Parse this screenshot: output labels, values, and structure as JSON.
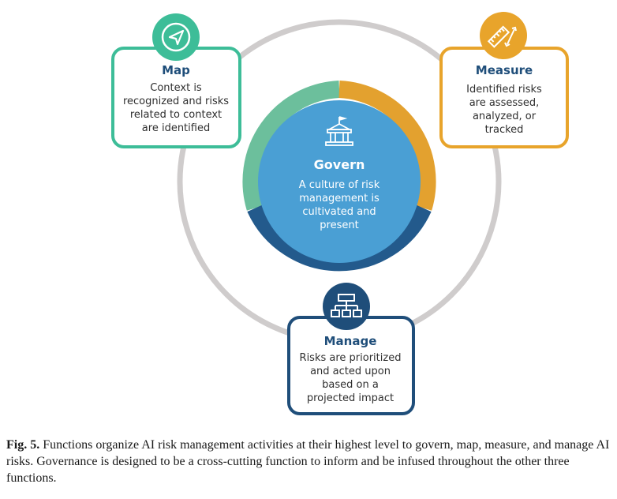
{
  "center": {
    "title": "Govern",
    "lines": [
      "A culture of risk",
      "management is",
      "cultivated and",
      "present"
    ],
    "icon": "building-icon",
    "color": "#4a9fd4"
  },
  "map": {
    "title": "Map",
    "lines": [
      "Context is",
      "recognized and risks",
      "related to context",
      "are identified"
    ],
    "icon": "compass-icon",
    "color": "#3dbd98"
  },
  "measure": {
    "title": "Measure",
    "lines": [
      "Identified risks",
      "are assessed,",
      "analyzed, or",
      "tracked"
    ],
    "icon": "ruler-icon",
    "color": "#e8a42b"
  },
  "manage": {
    "title": "Manage",
    "lines": [
      "Risks are prioritized",
      "and acted upon",
      "based on a",
      "projected impact"
    ],
    "icon": "hierarchy-icon",
    "color": "#1f4e7a"
  },
  "caption": {
    "label": "Fig. 5.",
    "text": " Functions organize AI risk management activities at their highest level to govern, map, measure, and manage AI risks. Governance is designed to be a cross-cutting function to inform and be infused throughout the other three functions."
  },
  "colors": {
    "outer_ring": "#cfcccc",
    "ring_green": "#6cbf9c",
    "ring_gold": "#e3a12f",
    "ring_navy": "#235a8c"
  }
}
